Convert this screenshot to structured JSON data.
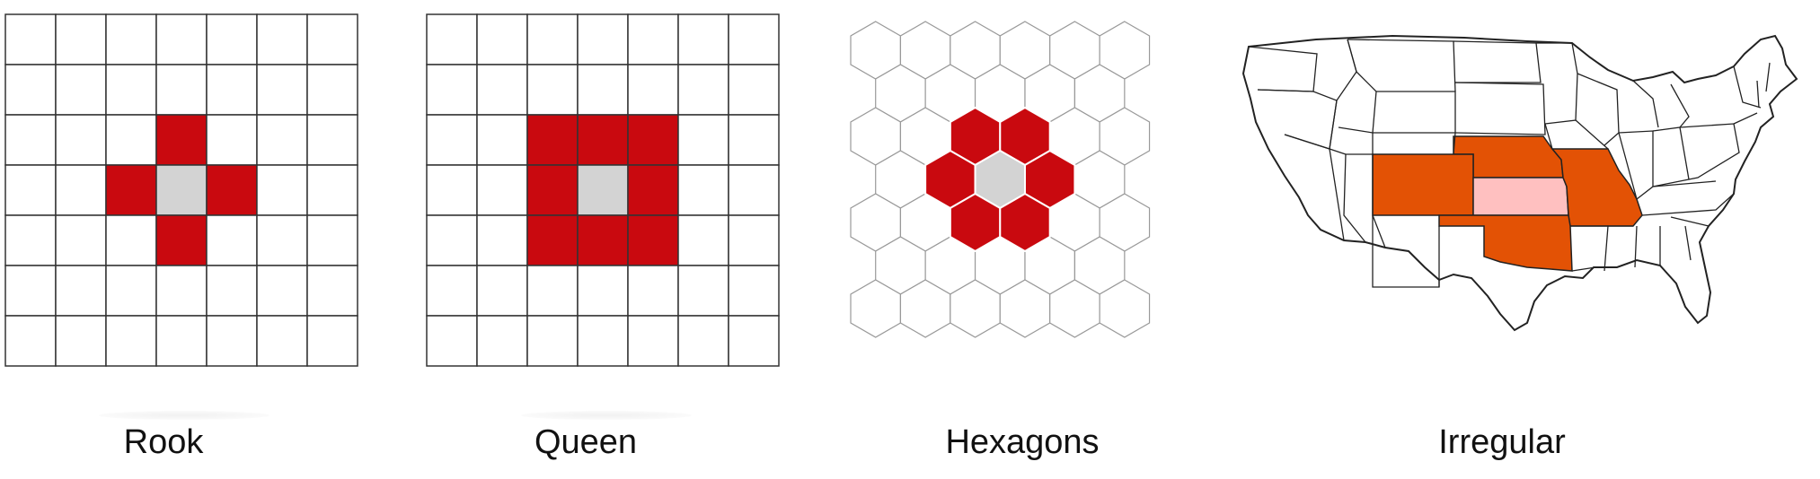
{
  "colors": {
    "neighbor": "#c9090f",
    "focal": "#d3d3d3",
    "state_neighbor": "#e35205",
    "state_focal": "#ffc0c0",
    "grid_line": "#333333",
    "hex_line": "#999999",
    "state_line": "#222222"
  },
  "panels": [
    {
      "id": "rook",
      "label": "Rook",
      "type": "square-grid",
      "rows": 7,
      "cols": 7,
      "focal": [
        3,
        3
      ],
      "neighbors": [
        [
          2,
          3
        ],
        [
          4,
          3
        ],
        [
          3,
          2
        ],
        [
          3,
          4
        ]
      ]
    },
    {
      "id": "queen",
      "label": "Queen",
      "type": "square-grid",
      "rows": 7,
      "cols": 7,
      "focal": [
        3,
        3
      ],
      "neighbors": [
        [
          2,
          2
        ],
        [
          2,
          3
        ],
        [
          2,
          4
        ],
        [
          3,
          2
        ],
        [
          3,
          4
        ],
        [
          4,
          2
        ],
        [
          4,
          3
        ],
        [
          4,
          4
        ]
      ]
    },
    {
      "id": "hexagons",
      "label": "Hexagons",
      "type": "hex-grid",
      "rows": 7,
      "cols": 6,
      "focal": [
        3,
        2
      ],
      "neighbors": [
        [
          2,
          2
        ],
        [
          2,
          3
        ],
        [
          3,
          1
        ],
        [
          3,
          3
        ],
        [
          4,
          2
        ],
        [
          4,
          3
        ]
      ]
    },
    {
      "id": "irregular",
      "label": "Irregular",
      "type": "us-map",
      "focal_state": "Kansas",
      "neighbor_states": [
        "Nebraska",
        "Colorado",
        "Missouri",
        "Oklahoma"
      ]
    }
  ]
}
